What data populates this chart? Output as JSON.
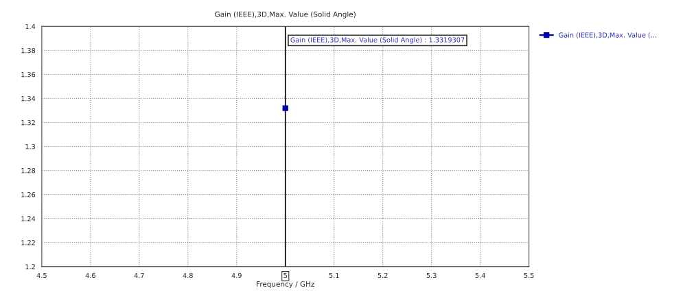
{
  "chart_data": {
    "type": "line",
    "title": "Gain (IEEE),3D,Max. Value (Solid Angle)",
    "xlabel": "Frequency / GHz",
    "series": [
      {
        "name": "Gain (IEEE),3D,Max. Value (...",
        "color": "#0000b0",
        "x": [
          5
        ],
        "values": [
          1.3319307
        ]
      }
    ],
    "xlim": [
      4.5,
      5.5
    ],
    "xticks": [
      4.5,
      4.6,
      4.7,
      4.8,
      4.9,
      5,
      5.1,
      5.2,
      5.3,
      5.4,
      5.5
    ],
    "ylim": [
      1.2,
      1.4
    ],
    "yticks": [
      1.2,
      1.22,
      1.24,
      1.26,
      1.28,
      1.3,
      1.32,
      1.34,
      1.36,
      1.38,
      1.4
    ],
    "ref_lines": [
      {
        "axis": "x",
        "value": 5,
        "color": "#000000"
      }
    ],
    "annotations": [
      "Gain (IEEE),3D,Max. Value (Solid Angle) : 1.3319307"
    ],
    "grid": true,
    "legend": "top right",
    "marker": "square",
    "line_style": "solid"
  }
}
